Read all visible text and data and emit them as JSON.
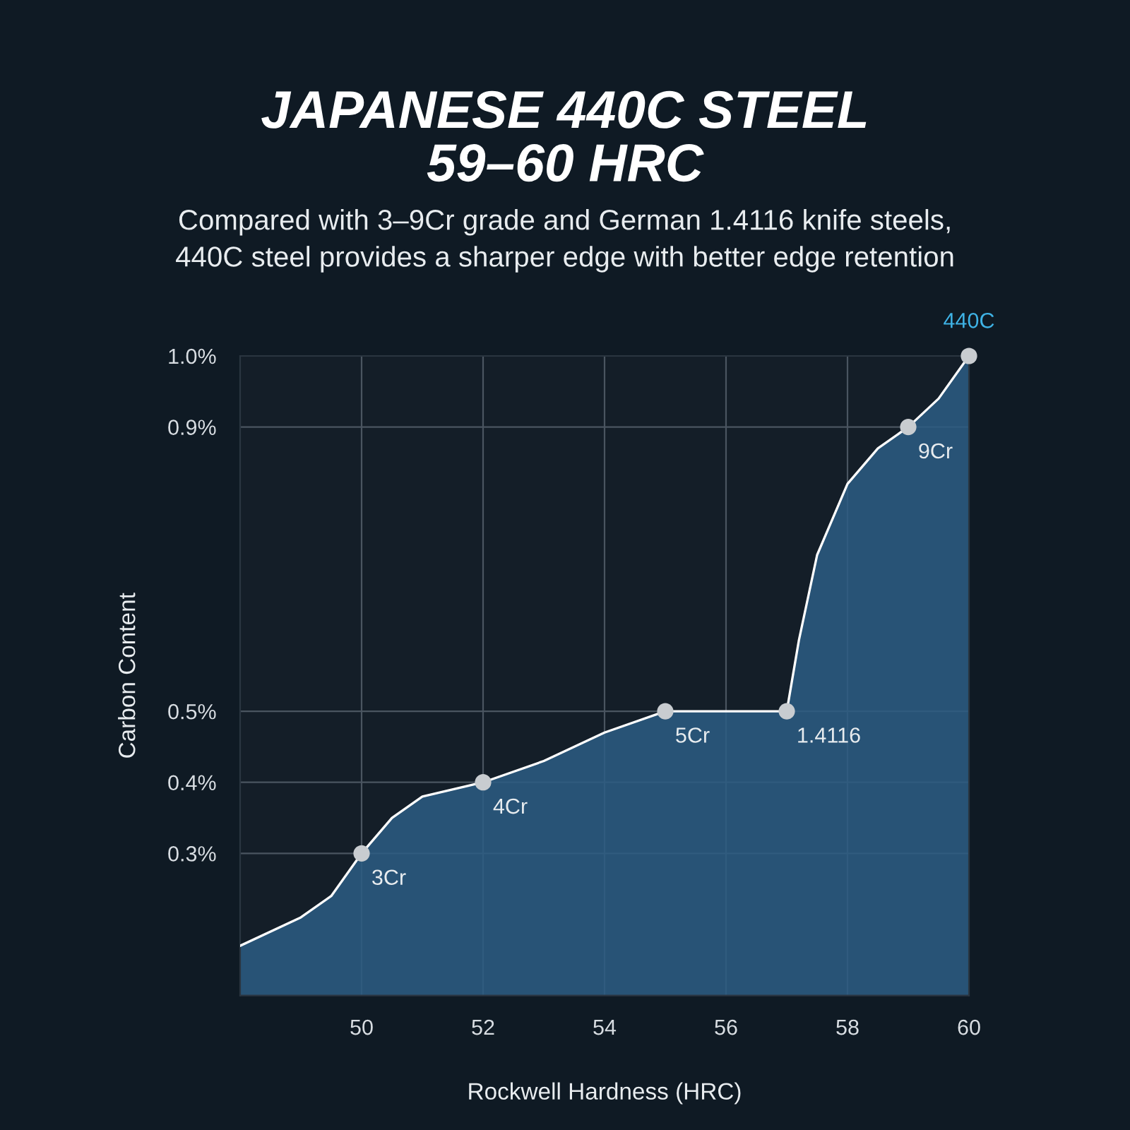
{
  "chart_data": {
    "type": "area",
    "title": "JAPANESE 440C STEEL\n59–60 HRC",
    "subtitle": "Compared with 3–9Cr grade and German 1.4116 knife steels,\n440C steel provides a sharper edge with better edge retention",
    "xlabel": "Rockwell Hardness (HRC)",
    "ylabel": "Carbon Content",
    "xlim": [
      48,
      60
    ],
    "xticks": [
      50,
      52,
      54,
      56,
      58,
      60
    ],
    "ylim": [
      0.1,
      1.0
    ],
    "yticks": [
      {
        "value": 0.3,
        "label": "0.3%"
      },
      {
        "value": 0.4,
        "label": "0.4%"
      },
      {
        "value": 0.5,
        "label": "0.5%"
      },
      {
        "value": 0.9,
        "label": "0.9%"
      },
      {
        "value": 1.0,
        "label": "1.0%"
      }
    ],
    "grid": true,
    "series": [
      {
        "color": "#ffffff",
        "x": [
          48,
          49,
          49.5,
          50,
          50.5,
          51,
          52,
          53,
          54,
          55,
          56,
          57,
          57.2,
          57.5,
          58,
          58.5,
          59,
          59.5,
          60
        ],
        "values": [
          0.17,
          0.21,
          0.24,
          0.3,
          0.35,
          0.38,
          0.4,
          0.43,
          0.47,
          0.5,
          0.5,
          0.5,
          0.6,
          0.72,
          0.82,
          0.87,
          0.9,
          0.94,
          1.0
        ]
      },
      {
        "type": "scatter",
        "color": "#c8ccd0",
        "marker": "circle",
        "x": [
          50,
          52,
          55,
          57,
          59,
          60
        ],
        "values": [
          0.3,
          0.4,
          0.5,
          0.5,
          0.9,
          1.0
        ]
      }
    ],
    "annotations": [
      {
        "text": "3Cr",
        "x": 50,
        "y": 0.3
      },
      {
        "text": "4Cr",
        "x": 52,
        "y": 0.4
      },
      {
        "text": "5Cr",
        "x": 55,
        "y": 0.5
      },
      {
        "text": "1.4116",
        "x": 57,
        "y": 0.5
      },
      {
        "text": "9Cr",
        "x": 59,
        "y": 0.9
      },
      {
        "text": "440C",
        "x": 60,
        "y": 1.0
      }
    ]
  }
}
